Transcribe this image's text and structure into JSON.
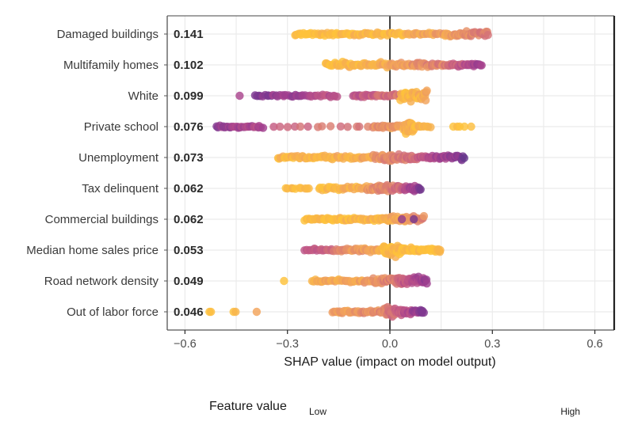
{
  "chart_data": {
    "type": "scatter",
    "subtype": "shap-beeswarm",
    "title": "",
    "xlabel": "SHAP value (impact on model output)",
    "ylabel": "",
    "xlim": [
      -0.65,
      0.665
    ],
    "xticks": [
      -0.6,
      -0.3,
      0.0,
      0.3,
      0.6
    ],
    "xtick_labels": [
      "−0.6",
      "−0.3",
      "0.0",
      "0.3",
      "0.6"
    ],
    "grid": true,
    "zero_line": 0.0,
    "legend": {
      "title": "Feature value",
      "low_label": "Low",
      "high_label": "High",
      "placement": "bottom",
      "colors": [
        "#fec23a",
        "#f2a35c",
        "#dc7f70",
        "#c45a84",
        "#a5418f",
        "#7b3790",
        "#55398a"
      ]
    },
    "features": [
      {
        "name": "Damaged buildings",
        "mean_abs_shap": "0.141",
        "segments": [
          {
            "from": -0.28,
            "to": 0.05,
            "n": 70,
            "color_from": 0.0,
            "color_to": 0.08,
            "spread": 0.35
          },
          {
            "from": 0.05,
            "to": 0.17,
            "n": 22,
            "color_from": 0.1,
            "color_to": 0.22,
            "spread": 0.3
          },
          {
            "from": 0.16,
            "to": 0.29,
            "n": 40,
            "color_from": 0.18,
            "color_to": 0.38,
            "spread": 0.55
          }
        ]
      },
      {
        "name": "Multifamily homes",
        "mean_abs_shap": "0.102",
        "segments": [
          {
            "from": -0.19,
            "to": 0.0,
            "n": 50,
            "color_from": 0.0,
            "color_to": 0.12,
            "spread": 0.6
          },
          {
            "from": 0.0,
            "to": 0.15,
            "n": 45,
            "color_from": 0.15,
            "color_to": 0.35,
            "spread": 0.5
          },
          {
            "from": 0.15,
            "to": 0.27,
            "n": 35,
            "color_from": 0.3,
            "color_to": 0.75,
            "spread": 0.4
          }
        ]
      },
      {
        "name": "White",
        "mean_abs_shap": "0.099",
        "segments": [
          {
            "from": -0.44,
            "to": -0.44,
            "n": 1,
            "color_from": 0.7,
            "color_to": 0.7,
            "spread": 0
          },
          {
            "from": -0.4,
            "to": -0.15,
            "n": 40,
            "color_from": 0.8,
            "color_to": 0.55,
            "spread": 0.3
          },
          {
            "from": -0.11,
            "to": 0.03,
            "n": 35,
            "color_from": 0.55,
            "color_to": 0.35,
            "spread": 0.35
          },
          {
            "from": 0.03,
            "to": 0.11,
            "n": 40,
            "color_from": 0.05,
            "color_to": 0.12,
            "spread": 1.2
          }
        ]
      },
      {
        "name": "Private school",
        "mean_abs_shap": "0.076",
        "segments": [
          {
            "from": -0.51,
            "to": -0.37,
            "n": 30,
            "color_from": 0.75,
            "color_to": 0.6,
            "spread": 0.3
          },
          {
            "from": -0.35,
            "to": -0.05,
            "n": 14,
            "color_from": 0.45,
            "color_to": 0.3,
            "spread": 0.1
          },
          {
            "from": -0.05,
            "to": 0.03,
            "n": 25,
            "color_from": 0.25,
            "color_to": 0.2,
            "spread": 0.4
          },
          {
            "from": 0.04,
            "to": 0.07,
            "n": 40,
            "color_from": 0.08,
            "color_to": 0.12,
            "spread": 1.6
          },
          {
            "from": 0.07,
            "to": 0.12,
            "n": 10,
            "color_from": 0.05,
            "color_to": 0.05,
            "spread": 0.3
          },
          {
            "from": 0.18,
            "to": 0.24,
            "n": 5,
            "color_from": 0.0,
            "color_to": 0.0,
            "spread": 0
          }
        ]
      },
      {
        "name": "Unemployment",
        "mean_abs_shap": "0.073",
        "segments": [
          {
            "from": -0.33,
            "to": -0.05,
            "n": 60,
            "color_from": 0.05,
            "color_to": 0.15,
            "spread": 0.4
          },
          {
            "from": -0.05,
            "to": 0.08,
            "n": 50,
            "color_from": 0.2,
            "color_to": 0.45,
            "spread": 0.7
          },
          {
            "from": 0.08,
            "to": 0.22,
            "n": 40,
            "color_from": 0.5,
            "color_to": 0.85,
            "spread": 0.45
          }
        ]
      },
      {
        "name": "Tax delinquent",
        "mean_abs_shap": "0.062",
        "segments": [
          {
            "from": -0.31,
            "to": -0.23,
            "n": 10,
            "color_from": 0.0,
            "color_to": 0.02,
            "spread": 0.1
          },
          {
            "from": -0.21,
            "to": -0.07,
            "n": 30,
            "color_from": 0.02,
            "color_to": 0.12,
            "spread": 0.4
          },
          {
            "from": -0.07,
            "to": 0.04,
            "n": 45,
            "color_from": 0.2,
            "color_to": 0.45,
            "spread": 0.8
          },
          {
            "from": 0.04,
            "to": 0.09,
            "n": 25,
            "color_from": 0.55,
            "color_to": 0.8,
            "spread": 0.6
          }
        ]
      },
      {
        "name": "Commercial buildings",
        "mean_abs_shap": "0.062",
        "segments": [
          {
            "from": -0.25,
            "to": -0.03,
            "n": 60,
            "color_from": 0.0,
            "color_to": 0.08,
            "spread": 0.35
          },
          {
            "from": -0.03,
            "to": 0.05,
            "n": 40,
            "color_from": 0.08,
            "color_to": 0.18,
            "spread": 0.6
          },
          {
            "from": 0.04,
            "to": 0.1,
            "n": 20,
            "color_from": 0.15,
            "color_to": 0.3,
            "spread": 0.8
          },
          {
            "from": 0.035,
            "to": 0.035,
            "n": 1,
            "color_from": 0.7,
            "color_to": 0.7,
            "spread": 0
          },
          {
            "from": 0.07,
            "to": 0.07,
            "n": 1,
            "color_from": 0.85,
            "color_to": 0.85,
            "spread": 0
          }
        ]
      },
      {
        "name": "Median home sales price",
        "mean_abs_shap": "0.053",
        "segments": [
          {
            "from": -0.25,
            "to": -0.15,
            "n": 20,
            "color_from": 0.55,
            "color_to": 0.35,
            "spread": 0.35
          },
          {
            "from": -0.15,
            "to": -0.02,
            "n": 40,
            "color_from": 0.3,
            "color_to": 0.12,
            "spread": 0.45
          },
          {
            "from": -0.02,
            "to": 0.03,
            "n": 40,
            "color_from": 0.05,
            "color_to": 0.02,
            "spread": 1.2
          },
          {
            "from": 0.03,
            "to": 0.15,
            "n": 45,
            "color_from": 0.02,
            "color_to": 0.0,
            "spread": 0.5
          }
        ]
      },
      {
        "name": "Road network density",
        "mean_abs_shap": "0.049",
        "segments": [
          {
            "from": -0.31,
            "to": -0.31,
            "n": 1,
            "color_from": 0.05,
            "color_to": 0.05,
            "spread": 0
          },
          {
            "from": -0.23,
            "to": -0.05,
            "n": 40,
            "color_from": 0.1,
            "color_to": 0.2,
            "spread": 0.35
          },
          {
            "from": -0.05,
            "to": 0.04,
            "n": 40,
            "color_from": 0.2,
            "color_to": 0.45,
            "spread": 0.7
          },
          {
            "from": 0.02,
            "to": 0.11,
            "n": 40,
            "color_from": 0.45,
            "color_to": 0.75,
            "spread": 0.9
          }
        ]
      },
      {
        "name": "Out of labor force",
        "mean_abs_shap": "0.046",
        "segments": [
          {
            "from": -0.53,
            "to": -0.52,
            "n": 2,
            "color_from": 0.05,
            "color_to": 0.05,
            "spread": 0
          },
          {
            "from": -0.47,
            "to": -0.44,
            "n": 2,
            "color_from": 0.08,
            "color_to": 0.08,
            "spread": 0
          },
          {
            "from": -0.39,
            "to": -0.39,
            "n": 1,
            "color_from": 0.1,
            "color_to": 0.1,
            "spread": 0
          },
          {
            "from": -0.17,
            "to": -0.02,
            "n": 40,
            "color_from": 0.15,
            "color_to": 0.3,
            "spread": 0.35
          },
          {
            "from": -0.02,
            "to": 0.05,
            "n": 45,
            "color_from": 0.3,
            "color_to": 0.55,
            "spread": 1.1
          },
          {
            "from": 0.04,
            "to": 0.1,
            "n": 25,
            "color_from": 0.55,
            "color_to": 0.8,
            "spread": 0.5
          }
        ]
      }
    ]
  }
}
